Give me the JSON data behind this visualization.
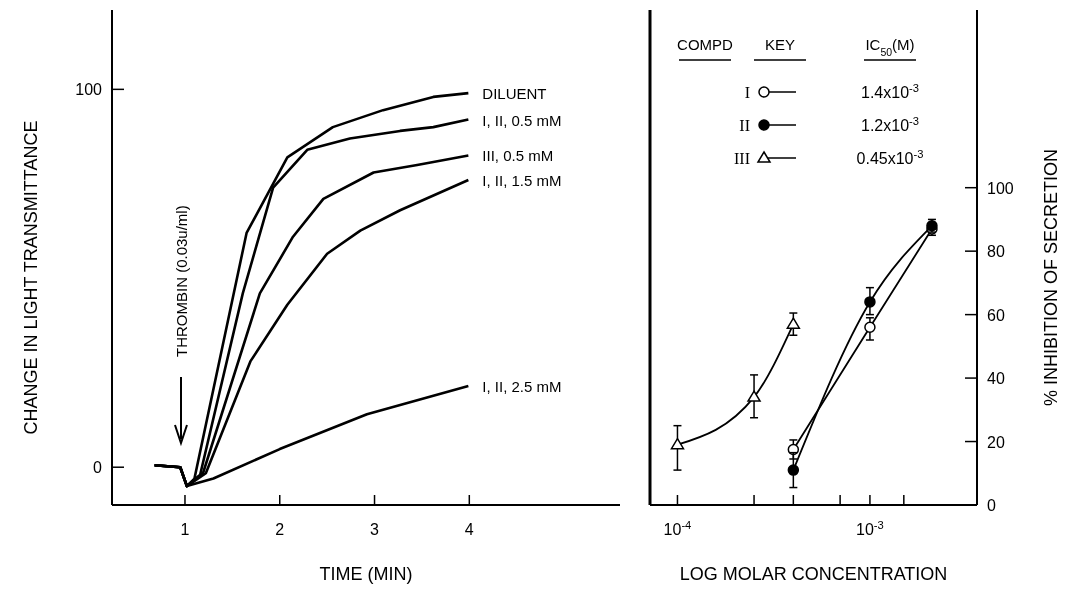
{
  "chart_data": [
    {
      "type": "line",
      "xlabel": "TIME (MIN)",
      "ylabel": "CHANGE IN LIGHT TRANSMITTANCE",
      "xlim": [
        0.23,
        5.59
      ],
      "ylim": [
        -10,
        121
      ],
      "xticks": [
        1,
        2,
        3,
        4
      ],
      "yticks": [
        0,
        100
      ],
      "legend": false,
      "annotations": [
        "THROMBIN (0.03u/ml)"
      ],
      "series": [
        {
          "name": "DILUENT",
          "color": "#000000",
          "x": [
            0.68,
            0.95,
            1.02,
            1.1,
            1.65,
            2.08,
            2.56,
            3.09,
            3.62,
            3.99
          ],
          "values": [
            0.5,
            0,
            -5,
            -3,
            62,
            82,
            90,
            94.5,
            98,
            99
          ]
        },
        {
          "name": "I, II, 0.5 mM",
          "color": "#000000",
          "x": [
            0.68,
            0.95,
            1.02,
            1.16,
            1.61,
            1.93,
            2.29,
            2.74,
            3.27,
            3.62,
            3.99
          ],
          "values": [
            0.5,
            0,
            -5,
            -2,
            46,
            74,
            84,
            87,
            89,
            90,
            92
          ]
        },
        {
          "name": "III, 0.5 mM",
          "color": "#000000",
          "x": [
            0.68,
            0.95,
            1.02,
            1.19,
            1.79,
            2.14,
            2.46,
            2.99,
            3.45,
            3.99
          ],
          "values": [
            0.5,
            0,
            -5,
            -1.6,
            46,
            61,
            71,
            78,
            80,
            82.5
          ]
        },
        {
          "name": "I, II, 1.5 mM",
          "color": "#000000",
          "x": [
            0.68,
            0.95,
            1.02,
            1.22,
            1.69,
            2.08,
            2.5,
            2.85,
            3.27,
            3.99
          ],
          "values": [
            0.5,
            0,
            -5,
            -1.6,
            28,
            43,
            56.5,
            62.6,
            68,
            76
          ]
        },
        {
          "name": "I, II, 2.5 mM",
          "color": "#000000",
          "x": [
            0.68,
            0.95,
            1.02,
            1.3,
            2.0,
            2.92,
            3.99
          ],
          "values": [
            0.5,
            0,
            -5,
            -3,
            4.8,
            14,
            21.5
          ]
        }
      ]
    },
    {
      "type": "line",
      "xlabel": "LOG MOLAR CONCENTRATION",
      "y2label": "% INHIBITION OF SECRETION",
      "log": "x",
      "xlim": [
        7.2e-05,
        0.0036
      ],
      "xticks": [
        {
          "value": 0.0001,
          "label": "10$^{-4}$"
        },
        {
          "value": 0.00025,
          "label": null
        },
        {
          "value": 0.0004,
          "label": null
        },
        {
          "value": 0.0007,
          "label": null
        },
        {
          "value": 0.001,
          "label": "10$^{-3}$"
        },
        {
          "value": 0.0015,
          "label": null
        }
      ],
      "y2lim": [
        0,
        156
      ],
      "y2ticks": [
        0,
        20,
        40,
        60,
        80,
        100
      ],
      "legend": "top",
      "annotations": [
        "COMPD",
        "KEY",
        "IC$_{50}$(M)",
        "1.4x10$^{-3}$",
        "1.2x10$^{-3}$",
        "0.45x10$^{-3}$"
      ],
      "series": [
        {
          "name": "I",
          "color": "#000000",
          "axis": "y2",
          "marker": "circle",
          "x": [
            0.0004,
            0.001,
            0.0021
          ],
          "values": [
            17.5,
            56,
            87
          ],
          "errors": [
            3,
            [
              52,
              59
            ],
            [
              85,
              89
            ]
          ]
        },
        {
          "name": "II",
          "color": "#000000",
          "axis": "y2",
          "marker": "circle",
          "x": [
            0.0004,
            0.001,
            0.0021
          ],
          "values": [
            11,
            64,
            88
          ],
          "errors": [
            5.5,
            [
              60,
              68.5
            ],
            [
              86,
              90
            ]
          ]
        },
        {
          "name": "III",
          "color": "#000000",
          "axis": "y2",
          "marker": "triangle",
          "x": [
            0.0001,
            0.00025,
            0.0004
          ],
          "values": [
            19,
            34,
            57
          ],
          "errors": [
            [
              11,
              25
            ],
            [
              27.5,
              41
            ],
            [
              53.5,
              60.5
            ]
          ]
        }
      ]
    }
  ]
}
